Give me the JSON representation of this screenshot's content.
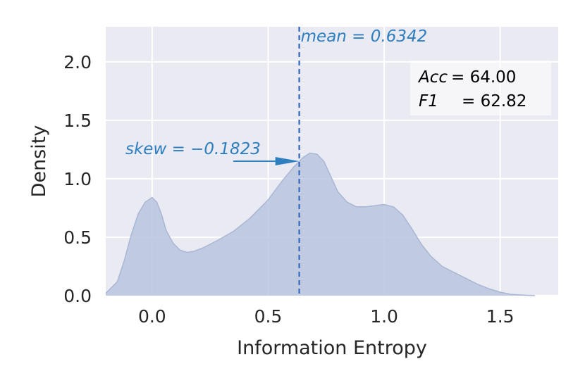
{
  "chart_data": {
    "type": "area",
    "subtype": "kde-density",
    "xlabel": "Information Entropy",
    "ylabel": "Density",
    "xlim": [
      -0.2,
      1.75
    ],
    "ylim": [
      0.0,
      2.3
    ],
    "xticks": [
      0.0,
      0.5,
      1.0,
      1.5
    ],
    "xtick_labels": [
      "0.0",
      "0.5",
      "1.0",
      "1.5"
    ],
    "yticks": [
      0.0,
      0.5,
      1.0,
      1.5,
      2.0
    ],
    "ytick_labels": [
      "0.0",
      "0.5",
      "1.0",
      "1.5",
      "2.0"
    ],
    "grid": true,
    "background": "#eaeaf2",
    "fill_color": "#b8c4de",
    "line_color": "#a9b7d6",
    "series": [
      {
        "x": [
          -0.2,
          -0.15,
          -0.12,
          -0.09,
          -0.06,
          -0.03,
          0.0,
          0.02,
          0.04,
          0.06,
          0.09,
          0.12,
          0.15,
          0.18,
          0.22,
          0.28,
          0.35,
          0.42,
          0.5,
          0.56,
          0.61,
          0.65,
          0.68,
          0.71,
          0.74,
          0.77,
          0.8,
          0.84,
          0.88,
          0.92,
          0.96,
          1.0,
          1.04,
          1.08,
          1.12,
          1.16,
          1.2,
          1.25,
          1.3,
          1.35,
          1.4,
          1.45,
          1.5,
          1.55,
          1.6,
          1.65
        ],
        "y": [
          0.02,
          0.12,
          0.3,
          0.52,
          0.7,
          0.8,
          0.84,
          0.8,
          0.7,
          0.56,
          0.45,
          0.39,
          0.37,
          0.38,
          0.41,
          0.47,
          0.55,
          0.66,
          0.82,
          0.98,
          1.1,
          1.18,
          1.22,
          1.21,
          1.15,
          1.02,
          0.89,
          0.8,
          0.76,
          0.76,
          0.77,
          0.78,
          0.76,
          0.69,
          0.57,
          0.44,
          0.34,
          0.25,
          0.2,
          0.15,
          0.1,
          0.06,
          0.03,
          0.01,
          0.005,
          0.0
        ]
      }
    ],
    "mean": 0.6342,
    "mean_label": "mean = 0.6342",
    "mean_line_color": "#4472c4",
    "skew_label": "skew = −0.1823",
    "skew_arrow_from": [
      0.35,
      1.15
    ],
    "skew_arrow_to": [
      0.6342,
      1.15
    ],
    "annotation_color": "#2e7fbf",
    "metrics_box": {
      "acc_name": "Acc",
      "acc_value": "= 64.00",
      "f1_name": "F1",
      "f1_value": "= 62.82"
    }
  }
}
